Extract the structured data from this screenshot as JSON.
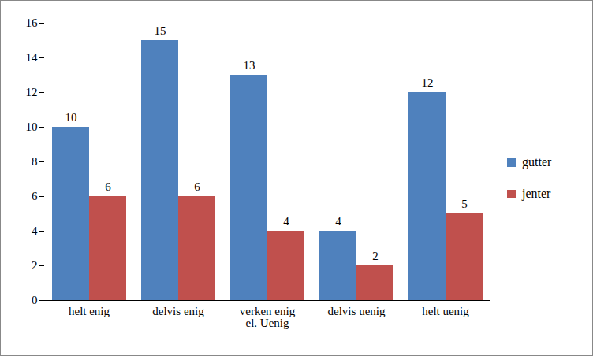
{
  "chart_data": {
    "type": "bar",
    "categories": [
      "helt enig",
      "delvis enig",
      "verken enig el. Uenig",
      "delvis uenig",
      "helt uenig"
    ],
    "series": [
      {
        "name": "gutter",
        "color": "#4f81bd",
        "values": [
          10,
          15,
          13,
          4,
          12
        ]
      },
      {
        "name": "jenter",
        "color": "#c0504d",
        "values": [
          6,
          6,
          4,
          2,
          5
        ]
      }
    ],
    "ylim": [
      0,
      16
    ],
    "yticks": [
      0,
      2,
      4,
      6,
      8,
      10,
      12,
      14,
      16
    ],
    "grid": false,
    "legend": "right",
    "data_labels": true
  }
}
